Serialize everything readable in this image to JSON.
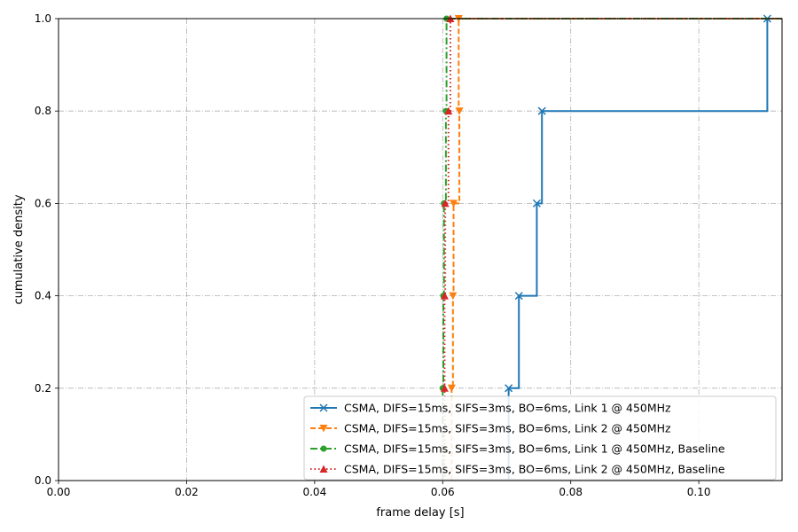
{
  "chart_data": {
    "type": "line",
    "subtype": "step-cdf",
    "xlabel": "frame delay [s]",
    "ylabel": "cumulative density",
    "xlim": [
      0.0,
      0.113
    ],
    "ylim": [
      0.0,
      1.0
    ],
    "x_ticks": [
      0.0,
      0.02,
      0.04,
      0.06,
      0.08,
      0.1
    ],
    "x_tick_labels": [
      "0.00",
      "0.02",
      "0.04",
      "0.06",
      "0.08",
      "0.10"
    ],
    "y_ticks": [
      0.0,
      0.2,
      0.4,
      0.6,
      0.8,
      1.0
    ],
    "y_tick_labels": [
      "0.0",
      "0.2",
      "0.4",
      "0.6",
      "0.8",
      "1.0"
    ],
    "grid": true,
    "legend_position": "lower-right",
    "series": [
      {
        "name": "CSMA, DIFS=15ms, SIFS=3ms, BO=6ms, Link 1 @ 450MHz",
        "color": "#1f77b4",
        "line_style": "solid",
        "marker": "x",
        "x": [
          0.0703,
          0.0719,
          0.0747,
          0.0755,
          0.1107
        ],
        "y": [
          0.2,
          0.4,
          0.6,
          0.8,
          1.0
        ]
      },
      {
        "name": "CSMA, DIFS=15ms, SIFS=3ms, BO=6ms, Link 2 @ 450MHz",
        "color": "#ff7f0e",
        "line_style": "dashed",
        "marker": "triangle-down",
        "x": [
          0.0614,
          0.0616,
          0.0617,
          0.0626,
          0.0625
        ],
        "y": [
          0.2,
          0.4,
          0.6,
          0.8,
          1.0
        ]
      },
      {
        "name": "CSMA, DIFS=15ms, SIFS=3ms, BO=6ms, Link 1 @ 450MHz,  Baseline",
        "color": "#2ca02c",
        "line_style": "dashdot",
        "marker": "circle",
        "x": [
          0.06,
          0.0601,
          0.0602,
          0.0605,
          0.0606
        ],
        "y": [
          0.2,
          0.4,
          0.6,
          0.8,
          1.0
        ]
      },
      {
        "name": "CSMA, DIFS=15ms, SIFS=3ms, BO=6ms, Link 2 @ 450MHz,  Baseline",
        "color": "#d62728",
        "line_style": "dotted",
        "marker": "triangle-up",
        "x": [
          0.0603,
          0.0603,
          0.0604,
          0.0609,
          0.0612
        ],
        "y": [
          0.2,
          0.4,
          0.6,
          0.8,
          1.0
        ]
      }
    ]
  }
}
